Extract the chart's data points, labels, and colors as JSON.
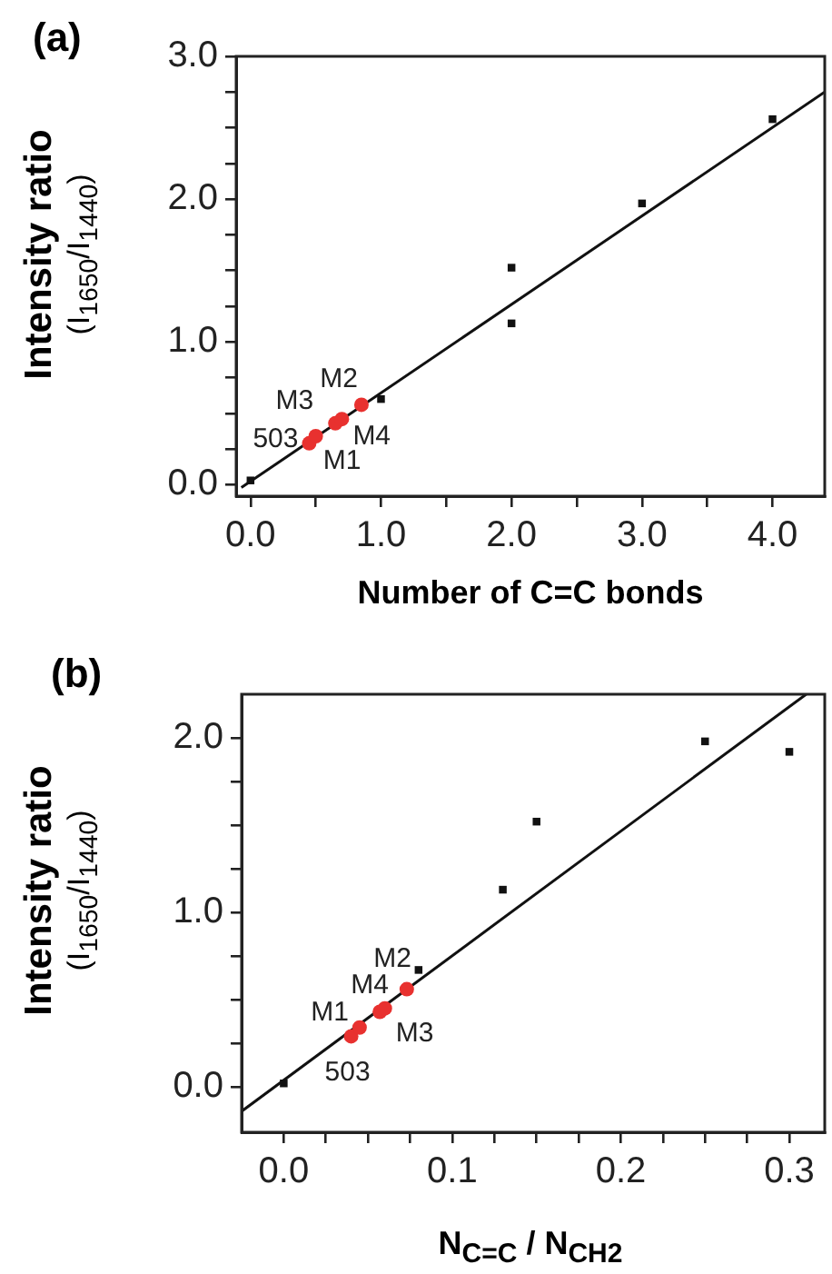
{
  "chart_data": [
    {
      "type": "scatter",
      "title": "(a)",
      "xlabel": "Number of C=C bonds",
      "ylabel": "Intensity ratio\n(I$_{1650}$/I$_{1440}$)",
      "xlim": [
        -0.11,
        4.4
      ],
      "ylim": [
        -0.08,
        3.0
      ],
      "xticks": [
        {
          "value": 0,
          "label": "0.0"
        },
        {
          "value": 0.5,
          "label": null
        },
        {
          "value": 1,
          "label": "1.0"
        },
        {
          "value": 1.5,
          "label": null
        },
        {
          "value": 2,
          "label": "2.0"
        },
        {
          "value": 2.5,
          "label": null
        },
        {
          "value": 3,
          "label": "3.0"
        },
        {
          "value": 3.5,
          "label": null
        },
        {
          "value": 4,
          "label": "4.0"
        }
      ],
      "yticks": [
        {
          "value": 0,
          "label": "0.0"
        },
        {
          "value": 0.25,
          "label": null
        },
        {
          "value": 0.5,
          "label": null
        },
        {
          "value": 0.75,
          "label": null
        },
        {
          "value": 1,
          "label": "1.0"
        },
        {
          "value": 1.25,
          "label": null
        },
        {
          "value": 1.5,
          "label": null
        },
        {
          "value": 1.75,
          "label": null
        },
        {
          "value": 2,
          "label": "2.0"
        },
        {
          "value": 2.25,
          "label": null
        },
        {
          "value": 2.5,
          "label": null
        },
        {
          "value": 2.75,
          "label": null
        },
        {
          "value": 3,
          "label": "3.0"
        }
      ],
      "series": [
        {
          "type": "scatter",
          "color": "#111111",
          "marker": "square",
          "x": [
            0,
            1,
            2,
            2,
            3,
            4
          ],
          "values": [
            0.03,
            0.6,
            1.52,
            1.13,
            1.97,
            2.56
          ]
        },
        {
          "type": "scatter",
          "color": "#e8312f",
          "marker": "circle",
          "x": [
            0.45,
            0.5,
            0.65,
            0.7,
            0.85
          ],
          "values": [
            0.29,
            0.34,
            0.43,
            0.46,
            0.56
          ]
        },
        {
          "type": "line",
          "color": "#111111",
          "marker": "none",
          "x": [
            -0.07,
            4.4
          ],
          "values": [
            -0.02,
            2.75
          ]
        }
      ],
      "annotations": [
        {
          "text": "503",
          "x": 0.45,
          "y": 0.29
        },
        {
          "text": "M1",
          "x": 0.5,
          "y": 0.34
        },
        {
          "text": "M3",
          "x": 0.65,
          "y": 0.43
        },
        {
          "text": "M4",
          "x": 0.7,
          "y": 0.46
        },
        {
          "text": "M2",
          "x": 0.85,
          "y": 0.56
        }
      ]
    },
    {
      "type": "scatter",
      "title": "(b)",
      "xlabel": "N$_{C=C}$ / N$_{CH2}$",
      "ylabel": "Intensity ratio\n(I$_{1650}$/I$_{1440}$)",
      "xlim": [
        -0.025,
        0.321
      ],
      "ylim": [
        -0.26,
        2.25
      ],
      "xticks": [
        {
          "value": 0,
          "label": "0.0"
        },
        {
          "value": 0.025,
          "label": null
        },
        {
          "value": 0.05,
          "label": null
        },
        {
          "value": 0.075,
          "label": null
        },
        {
          "value": 0.1,
          "label": "0.1"
        },
        {
          "value": 0.125,
          "label": null
        },
        {
          "value": 0.15,
          "label": null
        },
        {
          "value": 0.175,
          "label": null
        },
        {
          "value": 0.2,
          "label": "0.2"
        },
        {
          "value": 0.225,
          "label": null
        },
        {
          "value": 0.25,
          "label": null
        },
        {
          "value": 0.275,
          "label": null
        },
        {
          "value": 0.3,
          "label": "0.3"
        }
      ],
      "yticks": [
        {
          "value": 0,
          "label": "0.0"
        },
        {
          "value": 0.25,
          "label": null
        },
        {
          "value": 0.5,
          "label": null
        },
        {
          "value": 0.75,
          "label": null
        },
        {
          "value": 1,
          "label": "1.0"
        },
        {
          "value": 1.25,
          "label": null
        },
        {
          "value": 1.5,
          "label": null
        },
        {
          "value": 1.75,
          "label": null
        },
        {
          "value": 2,
          "label": "2.0"
        }
      ],
      "series": [
        {
          "type": "scatter",
          "color": "#111111",
          "marker": "square",
          "x": [
            0,
            0.08,
            0.13,
            0.15,
            0.25,
            0.3
          ],
          "values": [
            0.02,
            0.67,
            1.13,
            1.52,
            1.98,
            1.92
          ]
        },
        {
          "type": "scatter",
          "color": "#e8312f",
          "marker": "circle",
          "x": [
            0.04,
            0.045,
            0.057,
            0.06,
            0.073
          ],
          "values": [
            0.29,
            0.34,
            0.43,
            0.45,
            0.56
          ]
        },
        {
          "type": "line",
          "color": "#111111",
          "marker": "none",
          "x": [
            -0.025,
            0.31
          ],
          "values": [
            -0.14,
            2.25
          ]
        }
      ],
      "annotations": [
        {
          "text": "M1",
          "x": 0.045,
          "y": 0.34
        },
        {
          "text": "503",
          "x": 0.04,
          "y": 0.29
        },
        {
          "text": "M3",
          "x": 0.06,
          "y": 0.45
        },
        {
          "text": "M4",
          "x": 0.073,
          "y": 0.56
        },
        {
          "text": "M2",
          "x": 0.08,
          "y": 0.67
        }
      ]
    }
  ]
}
